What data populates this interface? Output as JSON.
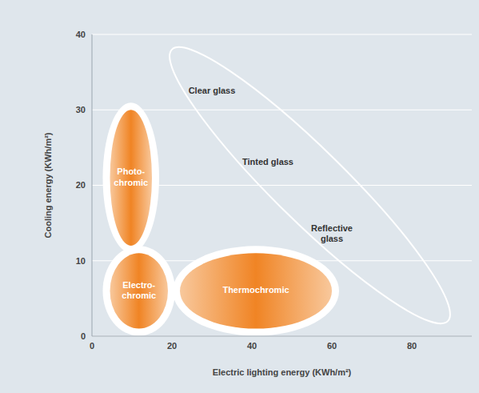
{
  "chart_data": {
    "type": "region",
    "x_label": "Electric lighting energy (KWh/m²)",
    "y_label": "Cooling energy (KWh/m²)",
    "xlim": [
      0,
      95
    ],
    "ylim": [
      0,
      40
    ],
    "xticks": [
      0,
      20,
      40,
      60,
      80
    ],
    "yticks": [
      0,
      10,
      20,
      30,
      40
    ],
    "grid": true,
    "regions": [
      {
        "name": "Photo-chromic",
        "x": [
          4.5,
          15
        ],
        "y": [
          12,
          30
        ],
        "color": "#f08424"
      },
      {
        "name": "Electro-chromic",
        "x": [
          4.5,
          19
        ],
        "y": [
          1,
          11
        ],
        "color": "#f08424"
      },
      {
        "name": "Thermochromic",
        "x": [
          22,
          60
        ],
        "y": [
          1,
          11
        ],
        "color": "#f08424"
      }
    ],
    "outline": {
      "from": [
        20,
        38
      ],
      "to": [
        89,
        2
      ],
      "color": "#ffffff"
    },
    "annotations": [
      {
        "text": "Clear glass",
        "x": 30,
        "y": 32.5
      },
      {
        "text": "Tinted glass",
        "x": 44,
        "y": 23
      },
      {
        "text": "Reflective glass",
        "x": 60,
        "y": 13.5
      }
    ]
  }
}
